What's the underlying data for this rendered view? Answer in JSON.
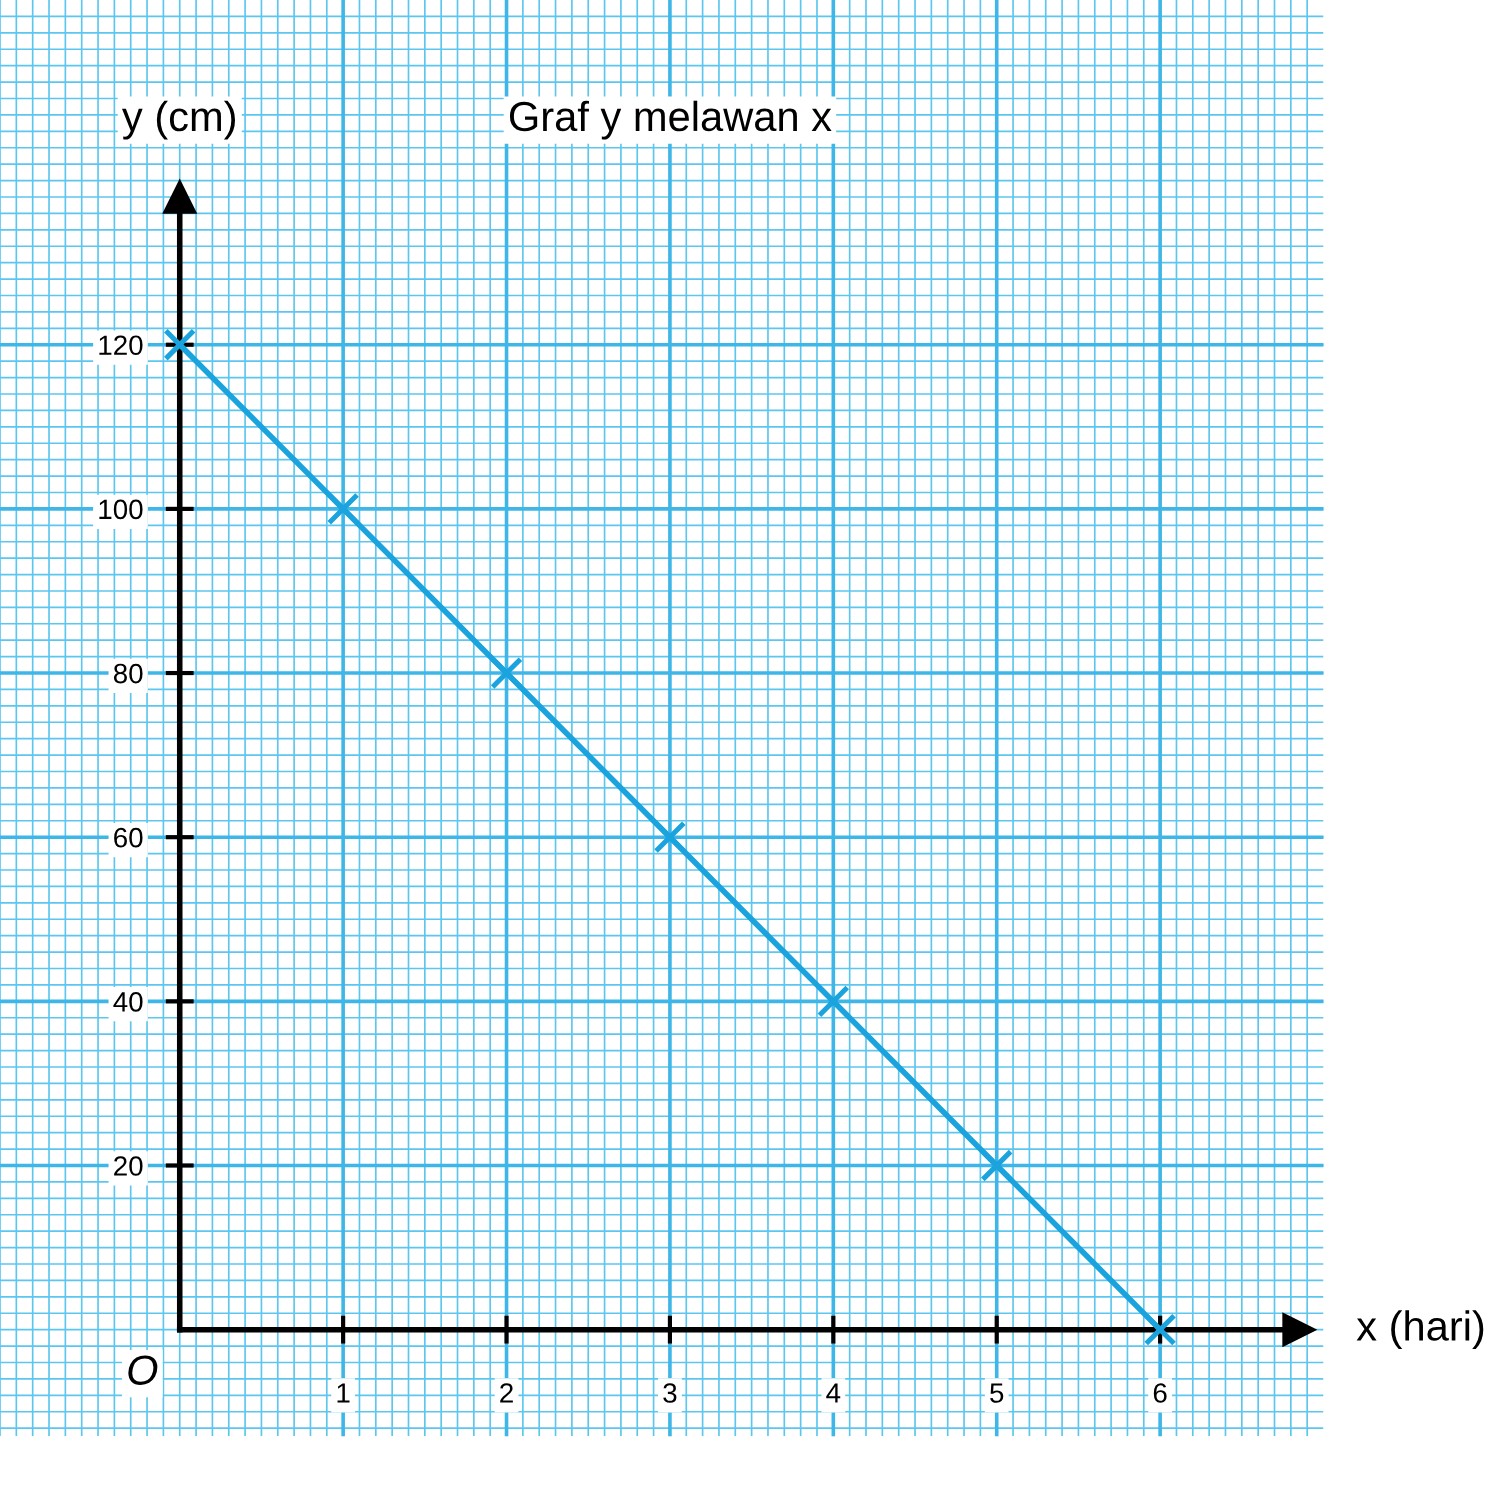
{
  "chart_data": {
    "type": "line",
    "title": "Graf y melawan x",
    "xlabel": "x (hari)",
    "ylabel": "y (cm)",
    "x": [
      0,
      1,
      2,
      3,
      4,
      5,
      6
    ],
    "series": [
      {
        "color": "#1aa3dd",
        "values": [
          120,
          100,
          80,
          60,
          40,
          20,
          0
        ]
      }
    ],
    "xlim": [
      -1.1,
      7.0
    ],
    "ylim": [
      -13,
      162
    ],
    "xticks": [
      1,
      2,
      3,
      4,
      5,
      6
    ],
    "yticks": [
      20,
      40,
      60,
      80,
      100,
      120
    ],
    "annotations": [
      "O"
    ],
    "grid": true,
    "marker": "cross",
    "line_style": "solid",
    "legend": false
  }
}
